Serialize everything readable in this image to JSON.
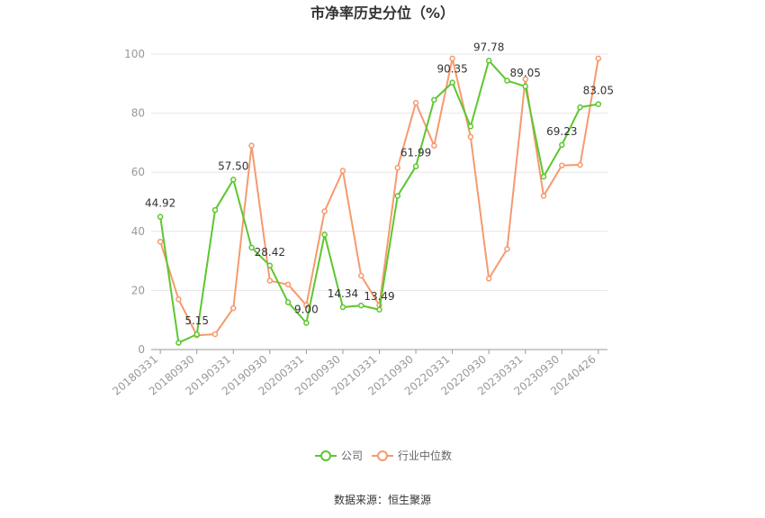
{
  "chart_data": {
    "type": "line",
    "title": "市净率历史分位（%）",
    "source": "数据来源：恒生聚源",
    "ylim": [
      0,
      100
    ],
    "yticks": [
      0,
      20,
      40,
      60,
      80,
      100
    ],
    "xticklabels": [
      "20180331",
      "20180930",
      "20190331",
      "20190930",
      "20200331",
      "20200930",
      "20210331",
      "20210930",
      "20220331",
      "20220930",
      "20230331",
      "20230930",
      "20240426"
    ],
    "x": [
      "20180331",
      "20180630",
      "20180930",
      "20181231",
      "20190331",
      "20190630",
      "20190930",
      "20191231",
      "20200331",
      "20200630",
      "20200930",
      "20201231",
      "20210331",
      "20210630",
      "20210930",
      "20211231",
      "20220331",
      "20220630",
      "20220930",
      "20221231",
      "20230331",
      "20230630",
      "20230930",
      "20231231",
      "20240426"
    ],
    "grid": true,
    "legend": "bottom",
    "series": [
      {
        "name": "公司",
        "color": "#5cc72f",
        "values": [
          44.92,
          2.3,
          5.15,
          47.2,
          57.5,
          34.5,
          28.42,
          16.0,
          9.0,
          38.9,
          14.34,
          14.9,
          13.49,
          52.0,
          61.99,
          84.5,
          90.35,
          75.5,
          97.78,
          91.0,
          89.05,
          58.5,
          69.23,
          82.0,
          83.05
        ],
        "labels": [
          "44.92",
          "",
          "5.15",
          "",
          "57.50",
          "",
          "28.42",
          "",
          "9.00",
          "",
          "14.34",
          "",
          "13.49",
          "",
          "61.99",
          "",
          "90.35",
          "",
          "97.78",
          "",
          "89.05",
          "",
          "69.23",
          "",
          "83.05"
        ]
      },
      {
        "name": "行业中位数",
        "color": "#f59a6e",
        "values": [
          36.5,
          17.0,
          4.8,
          5.2,
          14.0,
          69.0,
          23.3,
          22.0,
          15.0,
          46.8,
          60.5,
          25.0,
          15.0,
          61.5,
          83.5,
          69.0,
          98.5,
          72.0,
          24.0,
          34.0,
          91.5,
          52.0,
          62.3,
          62.5,
          98.5
        ]
      }
    ]
  }
}
